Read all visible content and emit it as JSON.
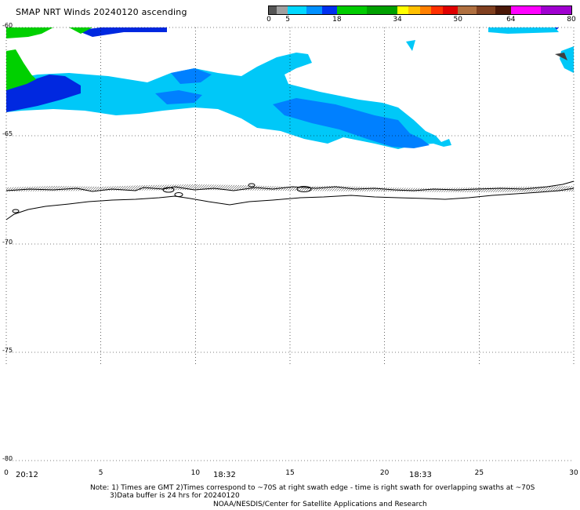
{
  "title": "SMAP NRT Winds 20240120 ascending",
  "colorbar": {
    "labels": [
      {
        "text": "0",
        "value": 0
      },
      {
        "text": "5",
        "value": 5
      },
      {
        "text": "18",
        "value": 18
      },
      {
        "text": "34",
        "value": 34
      },
      {
        "text": "50",
        "value": 50
      },
      {
        "text": "64",
        "value": 64
      },
      {
        "text": "80",
        "value": 80
      }
    ],
    "segments": [
      {
        "from": 0,
        "to": 2,
        "color": "#555555"
      },
      {
        "from": 2,
        "to": 5,
        "color": "#a0a0a0"
      },
      {
        "from": 5,
        "to": 10,
        "color": "#00d8ff"
      },
      {
        "from": 10,
        "to": 14,
        "color": "#0090ff"
      },
      {
        "from": 14,
        "to": 18,
        "color": "#0030f0"
      },
      {
        "from": 18,
        "to": 26,
        "color": "#00cc00"
      },
      {
        "from": 26,
        "to": 34,
        "color": "#00a000"
      },
      {
        "from": 34,
        "to": 37,
        "color": "#ffff00"
      },
      {
        "from": 37,
        "to": 40,
        "color": "#ffc000"
      },
      {
        "from": 40,
        "to": 43,
        "color": "#ff8000"
      },
      {
        "from": 43,
        "to": 46,
        "color": "#ff3000"
      },
      {
        "from": 46,
        "to": 50,
        "color": "#e00000"
      },
      {
        "from": 50,
        "to": 55,
        "color": "#b07040"
      },
      {
        "from": 55,
        "to": 60,
        "color": "#804020"
      },
      {
        "from": 60,
        "to": 64,
        "color": "#4a1808"
      },
      {
        "from": 64,
        "to": 72,
        "color": "#ff00ff"
      },
      {
        "from": 72,
        "to": 80,
        "color": "#a000d0"
      }
    ]
  },
  "axes": {
    "lat_labels": [
      "-60",
      "-65",
      "-70",
      "-75",
      "-80"
    ],
    "lon_labels": [
      "0",
      "5",
      "10",
      "15",
      "20",
      "25",
      "30"
    ]
  },
  "times": [
    "20:12",
    "18:32",
    "18:33"
  ],
  "notes": {
    "line1": "Note: 1) Times are GMT 2)Times correspond to ~70S at right swath edge - time is right swath for overlapping swaths at ~70S",
    "line2": "3)Data buffer is 24 hrs for 20240120",
    "credit": "NOAA/NESDIS/Center for Satellite Applications and Research"
  },
  "colors": {
    "wind_light_blue": "#00c8f8",
    "wind_mid_blue": "#0080ff",
    "wind_dark_blue": "#0028e0",
    "wind_green": "#00d000",
    "wind_dark": "#404040",
    "coastline": "#000000"
  }
}
